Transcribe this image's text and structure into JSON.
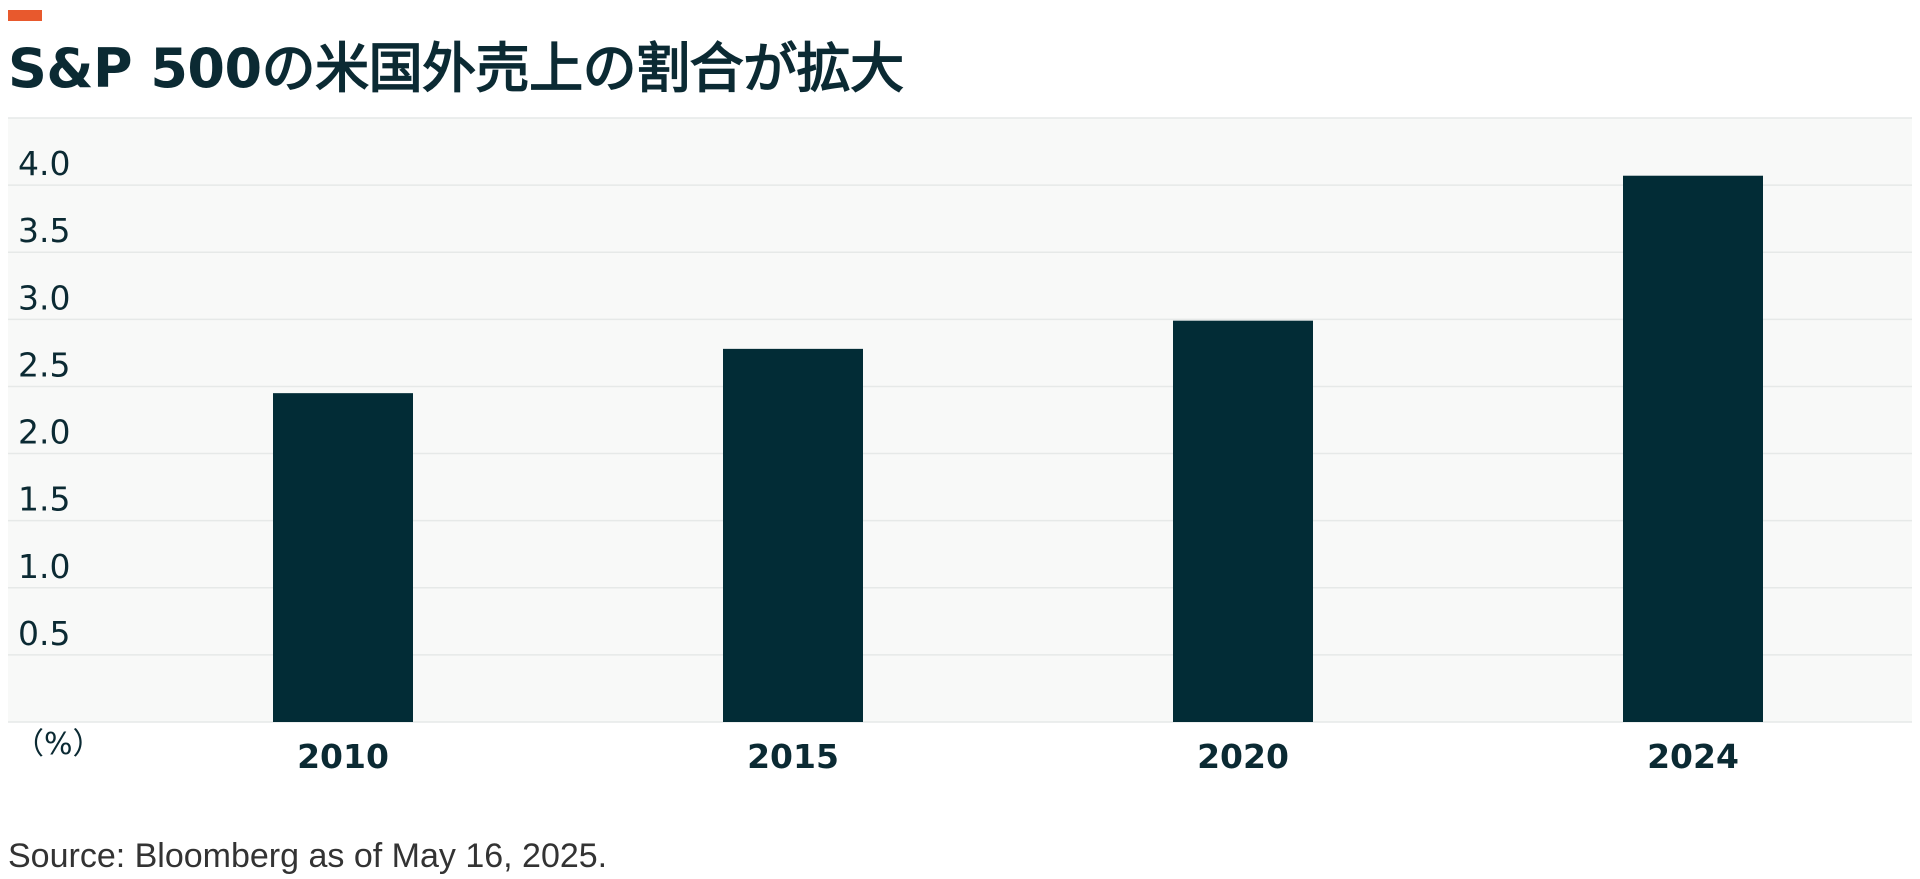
{
  "header": {
    "title": "S&P 500の米国外売上の割合が拡大"
  },
  "footer": {
    "source": "Source: Bloomberg as of May 16, 2025."
  },
  "colors": {
    "accent": "#e8592d",
    "bar": "#022c36",
    "text": "#0b2a33",
    "plot_background": "#f8f9f8",
    "gridline": "#e6e9e8"
  },
  "chart_data": {
    "type": "bar",
    "categories": [
      "2010",
      "2015",
      "2020",
      "2024"
    ],
    "values": [
      2.45,
      2.78,
      2.99,
      4.07
    ],
    "title": "",
    "xlabel": "",
    "ylabel": "",
    "unit_label": "（%）",
    "ylim": [
      0,
      4.5
    ],
    "yticks": [
      "0.5",
      "1.0",
      "1.5",
      "2.0",
      "2.5",
      "3.0",
      "3.5",
      "4.0",
      "4.5"
    ],
    "grid": true,
    "legend": "none"
  }
}
